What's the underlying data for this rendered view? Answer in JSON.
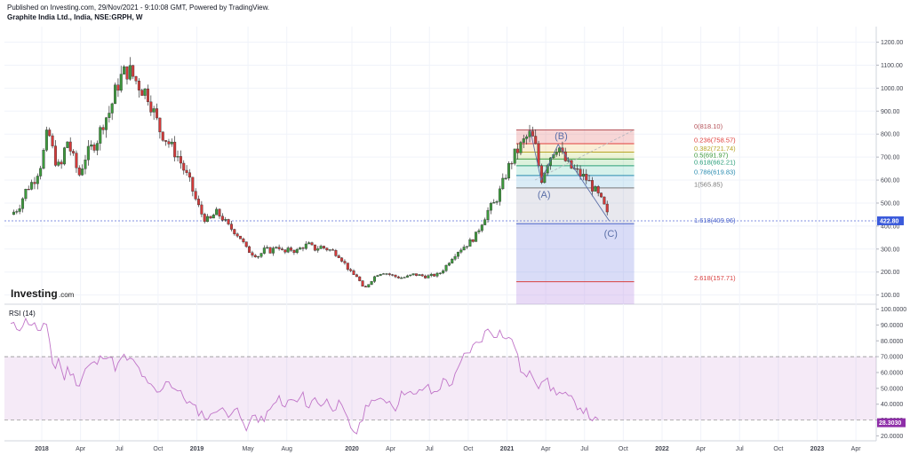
{
  "header": {
    "published": "Published on Investing.com, 29/Nov/2021 - 9:10:08 GMT, Powered by TradingView.",
    "symbol": "Graphite India Ltd., India, NSE:GRPH, W"
  },
  "logo": {
    "main": "Investing",
    "suffix": ".com"
  },
  "chart_data": [
    {
      "type": "candlestick",
      "title": "Graphite India Ltd., India, NSE:GRPH, W",
      "y_ticks": [
        100,
        200,
        300,
        400,
        500,
        600,
        700,
        800,
        900,
        1000,
        1100,
        1200
      ],
      "y_tick_labels": [
        "100.00",
        "200.00",
        "300.00",
        "400.00",
        "500.00",
        "600.00",
        "700.00",
        "800.00",
        "900.00",
        "1000.00",
        "1100.00",
        "1200.00"
      ],
      "ylim": [
        60,
        1260
      ],
      "x_ticks": [
        {
          "label": "2018",
          "pos": 0.0
        },
        {
          "label": "Apr",
          "pos": 0.25
        },
        {
          "label": "Jul",
          "pos": 0.5
        },
        {
          "label": "Oct",
          "pos": 0.75
        },
        {
          "label": "2019",
          "pos": 1.0
        },
        {
          "label": "May",
          "pos": 1.33
        },
        {
          "label": "Aug",
          "pos": 1.58
        },
        {
          "label": "2020",
          "pos": 2.0
        },
        {
          "label": "Apr",
          "pos": 2.25
        },
        {
          "label": "Jul",
          "pos": 2.5
        },
        {
          "label": "Oct",
          "pos": 2.75
        },
        {
          "label": "2021",
          "pos": 3.0
        },
        {
          "label": "Apr",
          "pos": 3.25
        },
        {
          "label": "Jul",
          "pos": 3.5
        },
        {
          "label": "Oct",
          "pos": 3.75
        },
        {
          "label": "2022",
          "pos": 4.0
        },
        {
          "label": "Apr",
          "pos": 4.25
        },
        {
          "label": "Jul",
          "pos": 4.5
        },
        {
          "label": "Oct",
          "pos": 4.75
        },
        {
          "label": "2023",
          "pos": 5.0
        },
        {
          "label": "Apr",
          "pos": 5.25
        }
      ],
      "last_price": 422.8,
      "last_price_label": "422.80",
      "close_path": [
        [
          -0.2,
          450
        ],
        [
          -0.15,
          480
        ],
        [
          -0.1,
          560
        ],
        [
          -0.05,
          600
        ],
        [
          0.0,
          680
        ],
        [
          0.04,
          820
        ],
        [
          0.08,
          700
        ],
        [
          0.12,
          640
        ],
        [
          0.16,
          780
        ],
        [
          0.2,
          700
        ],
        [
          0.24,
          620
        ],
        [
          0.28,
          700
        ],
        [
          0.32,
          740
        ],
        [
          0.36,
          780
        ],
        [
          0.4,
          860
        ],
        [
          0.44,
          900
        ],
        [
          0.48,
          1000
        ],
        [
          0.52,
          1060
        ],
        [
          0.56,
          1080
        ],
        [
          0.6,
          1040
        ],
        [
          0.64,
          1000
        ],
        [
          0.68,
          980
        ],
        [
          0.72,
          900
        ],
        [
          0.76,
          820
        ],
        [
          0.8,
          780
        ],
        [
          0.84,
          740
        ],
        [
          0.88,
          700
        ],
        [
          0.92,
          640
        ],
        [
          0.96,
          580
        ],
        [
          1.0,
          500
        ],
        [
          1.04,
          440
        ],
        [
          1.08,
          420
        ],
        [
          1.12,
          460
        ],
        [
          1.16,
          440
        ],
        [
          1.2,
          400
        ],
        [
          1.24,
          380
        ],
        [
          1.28,
          350
        ],
        [
          1.32,
          300
        ],
        [
          1.36,
          280
        ],
        [
          1.4,
          270
        ],
        [
          1.44,
          300
        ],
        [
          1.48,
          290
        ],
        [
          1.52,
          320
        ],
        [
          1.56,
          280
        ],
        [
          1.6,
          300
        ],
        [
          1.64,
          290
        ],
        [
          1.68,
          310
        ],
        [
          1.72,
          320
        ],
        [
          1.76,
          300
        ],
        [
          1.8,
          310
        ],
        [
          1.84,
          300
        ],
        [
          1.88,
          290
        ],
        [
          1.92,
          270
        ],
        [
          1.96,
          230
        ],
        [
          2.0,
          190
        ],
        [
          2.04,
          180
        ],
        [
          2.06,
          140
        ],
        [
          2.08,
          125
        ],
        [
          2.12,
          160
        ],
        [
          2.16,
          190
        ],
        [
          2.2,
          200
        ],
        [
          2.24,
          190
        ],
        [
          2.28,
          180
        ],
        [
          2.32,
          175
        ],
        [
          2.36,
          180
        ],
        [
          2.4,
          190
        ],
        [
          2.44,
          185
        ],
        [
          2.48,
          180
        ],
        [
          2.52,
          185
        ],
        [
          2.56,
          190
        ],
        [
          2.6,
          220
        ],
        [
          2.64,
          260
        ],
        [
          2.68,
          290
        ],
        [
          2.72,
          310
        ],
        [
          2.76,
          330
        ],
        [
          2.8,
          360
        ],
        [
          2.84,
          420
        ],
        [
          2.88,
          470
        ],
        [
          2.92,
          500
        ],
        [
          2.96,
          560
        ],
        [
          3.0,
          640
        ],
        [
          3.04,
          700
        ],
        [
          3.08,
          740
        ],
        [
          3.12,
          780
        ],
        [
          3.15,
          800
        ],
        [
          3.18,
          760
        ],
        [
          3.22,
          600
        ],
        [
          3.26,
          680
        ],
        [
          3.3,
          730
        ],
        [
          3.33,
          755
        ],
        [
          3.36,
          700
        ],
        [
          3.4,
          660
        ],
        [
          3.44,
          640
        ],
        [
          3.48,
          620
        ],
        [
          3.52,
          600
        ],
        [
          3.56,
          560
        ],
        [
          3.6,
          520
        ],
        [
          3.63,
          480
        ],
        [
          3.66,
          422
        ]
      ],
      "fibonacci": [
        {
          "label": "0(818.10)",
          "value": 818.1,
          "color": "#b5535a"
        },
        {
          "label": "0.236(758.57)",
          "value": 758.57,
          "color": "#e0403d"
        },
        {
          "label": "0.382(721.74)",
          "value": 721.74,
          "color": "#b8a62a"
        },
        {
          "label": "0.5(691.97)",
          "value": 691.97,
          "color": "#3d9a3d"
        },
        {
          "label": "0.618(662.21)",
          "value": 662.21,
          "color": "#2a9e7a"
        },
        {
          "label": "0.786(619.83)",
          "value": 619.83,
          "color": "#2a8cb0"
        },
        {
          "label": "1(565.85)",
          "value": 565.85,
          "color": "#7a7a7a"
        },
        {
          "label": "1.618(409.96)",
          "value": 409.96,
          "color": "#4a63c9"
        },
        {
          "label": "2.618(157.71)",
          "value": 157.71,
          "color": "#d94040"
        }
      ],
      "waves": [
        {
          "label": "(A)",
          "x": 3.22,
          "y": 600
        },
        {
          "label": "(B)",
          "x": 3.33,
          "y": 755
        },
        {
          "label": "(C)",
          "x": 3.66,
          "y": 422
        }
      ]
    },
    {
      "type": "line",
      "title": "RSI (14)",
      "y_ticks": [
        20,
        30,
        40,
        50,
        60,
        70,
        80,
        90,
        100
      ],
      "y_tick_labels": [
        "20.0000",
        "30.0000",
        "40.0000",
        "50.0000",
        "60.0000",
        "70.0000",
        "80.0000",
        "90.0000",
        "100.0000"
      ],
      "ylim": [
        18,
        102
      ],
      "band": [
        30,
        70
      ],
      "last_value": 28.303,
      "last_value_label": "28.3030",
      "values": [
        [
          -0.2,
          90
        ],
        [
          -0.15,
          88
        ],
        [
          -0.1,
          93
        ],
        [
          -0.05,
          90
        ],
        [
          0.0,
          85
        ],
        [
          0.02,
          92
        ],
        [
          0.05,
          80
        ],
        [
          0.08,
          60
        ],
        [
          0.11,
          70
        ],
        [
          0.14,
          55
        ],
        [
          0.17,
          63
        ],
        [
          0.2,
          58
        ],
        [
          0.24,
          52
        ],
        [
          0.28,
          62
        ],
        [
          0.32,
          65
        ],
        [
          0.36,
          66
        ],
        [
          0.4,
          72
        ],
        [
          0.44,
          70
        ],
        [
          0.48,
          62
        ],
        [
          0.52,
          70
        ],
        [
          0.56,
          68
        ],
        [
          0.6,
          66
        ],
        [
          0.64,
          60
        ],
        [
          0.68,
          52
        ],
        [
          0.72,
          50
        ],
        [
          0.76,
          46
        ],
        [
          0.8,
          56
        ],
        [
          0.84,
          52
        ],
        [
          0.88,
          48
        ],
        [
          0.92,
          44
        ],
        [
          0.96,
          40
        ],
        [
          1.0,
          36
        ],
        [
          1.04,
          34
        ],
        [
          1.08,
          30
        ],
        [
          1.12,
          38
        ],
        [
          1.16,
          36
        ],
        [
          1.2,
          34
        ],
        [
          1.24,
          38
        ],
        [
          1.28,
          32
        ],
        [
          1.32,
          22
        ],
        [
          1.36,
          36
        ],
        [
          1.4,
          28
        ],
        [
          1.44,
          32
        ],
        [
          1.48,
          36
        ],
        [
          1.52,
          46
        ],
        [
          1.56,
          36
        ],
        [
          1.6,
          44
        ],
        [
          1.64,
          40
        ],
        [
          1.68,
          46
        ],
        [
          1.72,
          38
        ],
        [
          1.76,
          44
        ],
        [
          1.8,
          40
        ],
        [
          1.84,
          42
        ],
        [
          1.88,
          38
        ],
        [
          1.92,
          40
        ],
        [
          1.96,
          32
        ],
        [
          2.0,
          24
        ],
        [
          2.04,
          22
        ],
        [
          2.08,
          36
        ],
        [
          2.12,
          44
        ],
        [
          2.16,
          40
        ],
        [
          2.2,
          44
        ],
        [
          2.24,
          42
        ],
        [
          2.28,
          38
        ],
        [
          2.32,
          46
        ],
        [
          2.36,
          50
        ],
        [
          2.4,
          44
        ],
        [
          2.44,
          48
        ],
        [
          2.48,
          52
        ],
        [
          2.52,
          46
        ],
        [
          2.56,
          50
        ],
        [
          2.6,
          56
        ],
        [
          2.64,
          52
        ],
        [
          2.68,
          60
        ],
        [
          2.72,
          70
        ],
        [
          2.76,
          74
        ],
        [
          2.8,
          78
        ],
        [
          2.84,
          82
        ],
        [
          2.88,
          88
        ],
        [
          2.92,
          84
        ],
        [
          2.96,
          86
        ],
        [
          3.0,
          80
        ],
        [
          3.04,
          82
        ],
        [
          3.08,
          64
        ],
        [
          3.12,
          56
        ],
        [
          3.16,
          60
        ],
        [
          3.2,
          52
        ],
        [
          3.24,
          58
        ],
        [
          3.28,
          50
        ],
        [
          3.32,
          48
        ],
        [
          3.36,
          46
        ],
        [
          3.4,
          44
        ],
        [
          3.44,
          40
        ],
        [
          3.48,
          38
        ],
        [
          3.52,
          34
        ],
        [
          3.56,
          30
        ],
        [
          3.6,
          28
        ]
      ]
    }
  ]
}
